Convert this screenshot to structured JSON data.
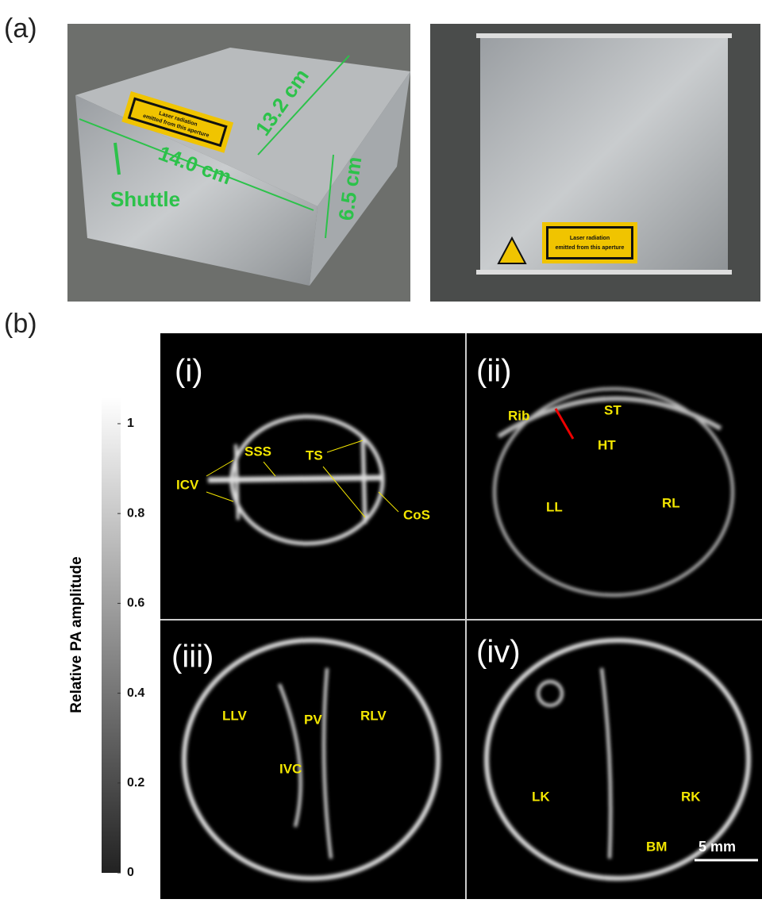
{
  "panel_a": {
    "label": "(a)",
    "photo_left": {
      "annotations": [
        "13.2 cm",
        "14.0 cm",
        "6.5 cm",
        "Shuttle"
      ],
      "sign_text": [
        "Laser radiation",
        "emitted from this aperture"
      ]
    },
    "photo_right": {
      "sign_text": [
        "Laser radiation",
        "emitted from this aperture"
      ]
    }
  },
  "panel_b": {
    "label": "(b)",
    "colorbar": {
      "label": "Relative PA amplitude",
      "lim": [
        0,
        1.06
      ],
      "ticks": [
        0,
        0.2,
        0.4,
        0.6,
        0.8,
        1
      ]
    },
    "images": [
      {
        "label": "(i)",
        "annotations": [
          "ICV",
          "SSS",
          "TS",
          "CoS"
        ]
      },
      {
        "label": "(ii)",
        "annotations": [
          "Rib",
          "ST",
          "HT",
          "LL",
          "RL"
        ]
      },
      {
        "label": "(iii)",
        "annotations": [
          "LLV",
          "PV",
          "RLV",
          "IVC"
        ]
      },
      {
        "label": "(iv)",
        "annotations": [
          "LK",
          "RK",
          "BM"
        ]
      }
    ],
    "scale_bar": "5 mm"
  }
}
